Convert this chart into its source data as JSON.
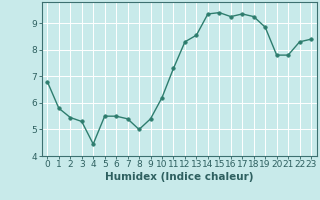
{
  "x": [
    0,
    1,
    2,
    3,
    4,
    5,
    6,
    7,
    8,
    9,
    10,
    11,
    12,
    13,
    14,
    15,
    16,
    17,
    18,
    19,
    20,
    21,
    22,
    23
  ],
  "y": [
    6.8,
    5.8,
    5.45,
    5.3,
    4.45,
    5.5,
    5.5,
    5.4,
    5.0,
    5.4,
    6.2,
    7.3,
    8.3,
    8.55,
    9.35,
    9.4,
    9.25,
    9.35,
    9.25,
    8.85,
    7.8,
    7.8,
    8.3,
    8.4
  ],
  "xlabel": "Humidex (Indice chaleur)",
  "ylabel": "",
  "xlim": [
    -0.5,
    23.5
  ],
  "ylim": [
    4,
    9.8
  ],
  "yticks": [
    4,
    5,
    6,
    7,
    8,
    9
  ],
  "xticks": [
    0,
    1,
    2,
    3,
    4,
    5,
    6,
    7,
    8,
    9,
    10,
    11,
    12,
    13,
    14,
    15,
    16,
    17,
    18,
    19,
    20,
    21,
    22,
    23
  ],
  "line_color": "#2e7d6e",
  "marker_color": "#2e7d6e",
  "bg_color": "#c8eaea",
  "grid_color": "#ffffff",
  "axis_color": "#2e6060",
  "border_color": "#3d7070",
  "xlabel_fontsize": 7.5,
  "tick_fontsize": 6.5,
  "line_width": 1.0,
  "marker_size": 2.5
}
